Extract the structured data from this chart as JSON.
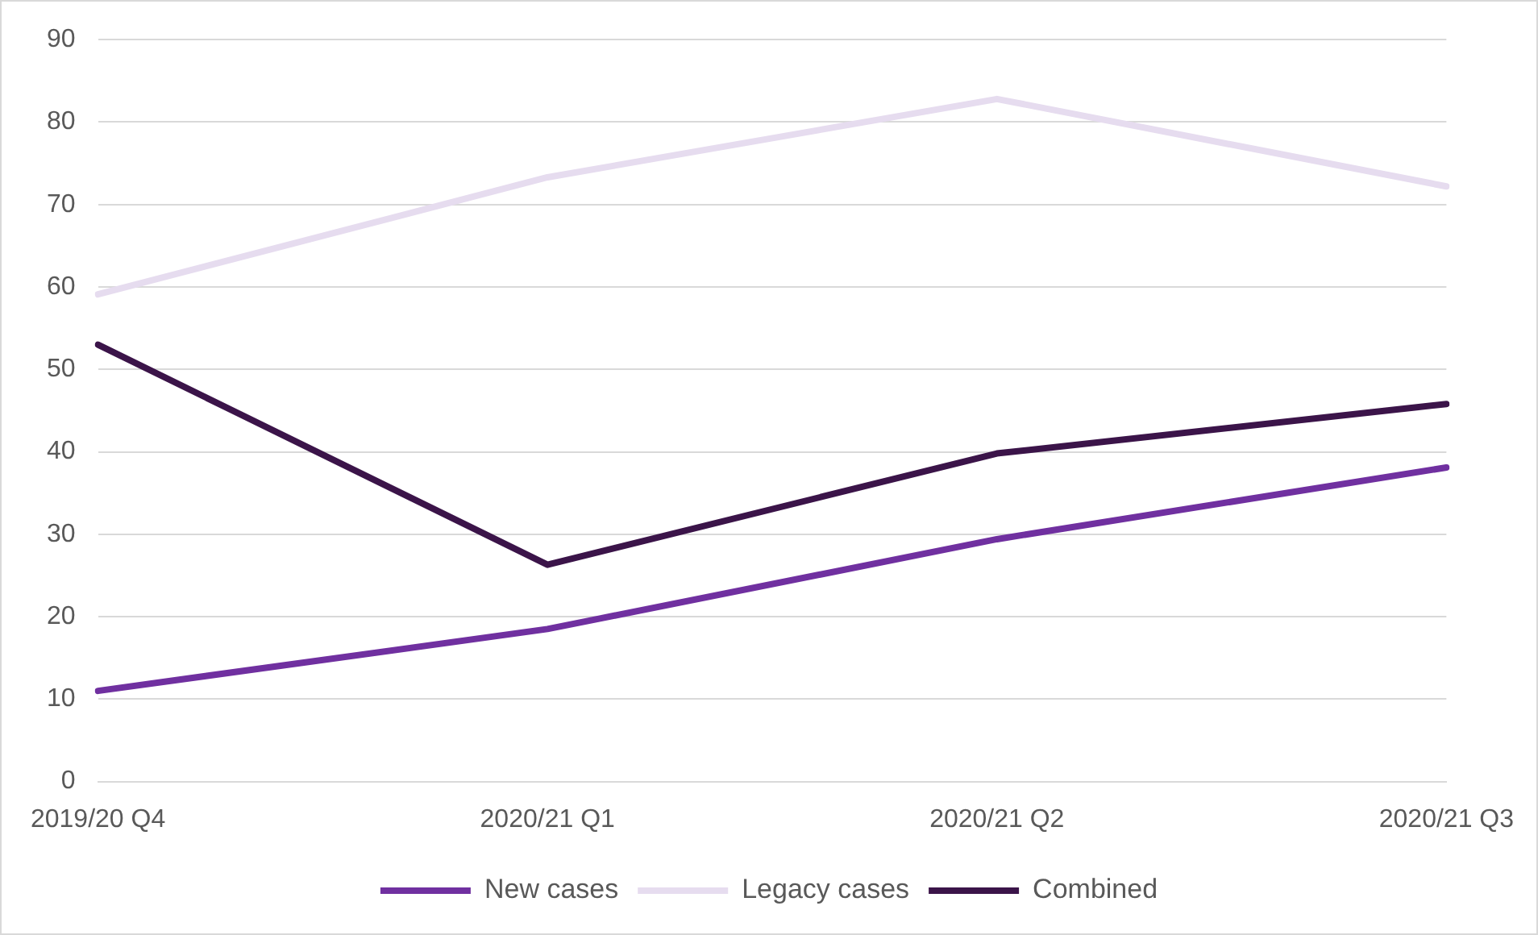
{
  "chart_data": {
    "type": "line",
    "categories": [
      "2019/20 Q4",
      "2020/21 Q1",
      "2020/21 Q2",
      "2020/21 Q3"
    ],
    "series": [
      {
        "name": "New cases",
        "color": "#7030a0",
        "values": [
          11,
          18.5,
          29.4,
          38.1
        ]
      },
      {
        "name": "Legacy cases",
        "color": "#e6dcef",
        "values": [
          59.1,
          73.3,
          82.8,
          72.2
        ]
      },
      {
        "name": "Combined",
        "color": "#3b1449",
        "values": [
          53,
          26.3,
          39.8,
          45.8
        ]
      }
    ],
    "ylim": [
      0,
      90
    ],
    "yticks": [
      0,
      10,
      20,
      30,
      40,
      50,
      60,
      70,
      80,
      90
    ],
    "grid": "y",
    "legend": "bottom",
    "marker": "none",
    "line_style": "solid"
  }
}
